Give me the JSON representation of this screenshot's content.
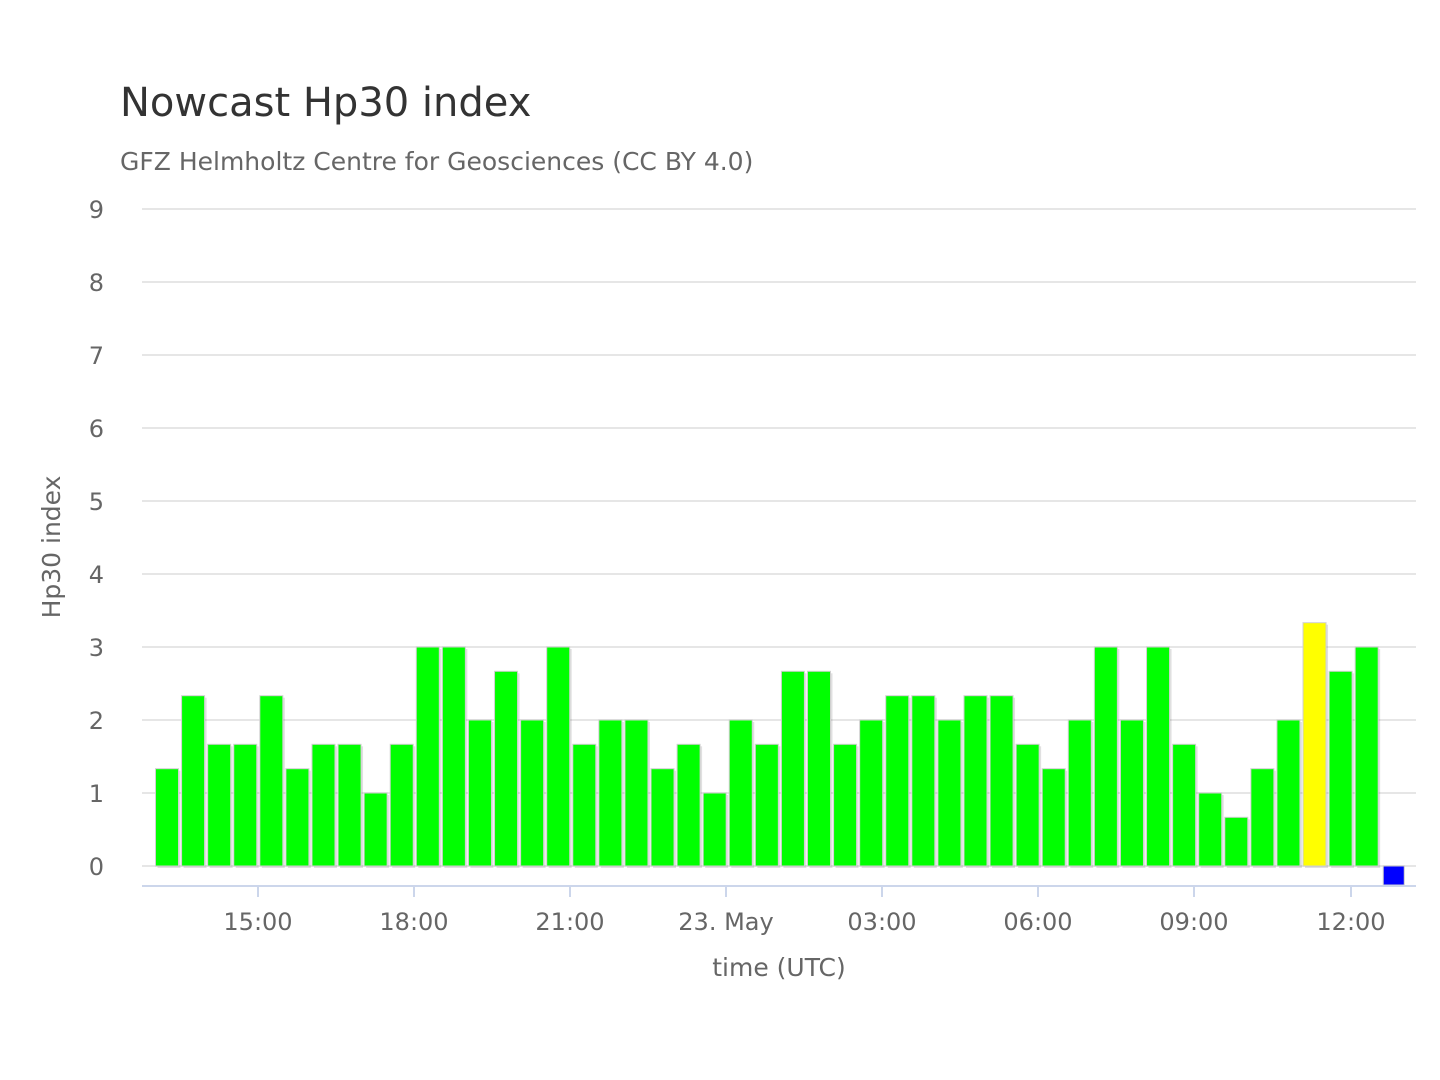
{
  "chart_data": {
    "type": "bar",
    "title": "Nowcast Hp30 index",
    "subtitle": "GFZ Helmholtz Centre for Geosciences (CC BY 4.0)",
    "xlabel": "time (UTC)",
    "ylabel": "Hp30 index",
    "ylim": [
      0,
      9
    ],
    "yticks": [
      "0",
      "1",
      "2",
      "3",
      "4",
      "5",
      "6",
      "7",
      "8",
      "9"
    ],
    "xticks": [
      "15:00",
      "18:00",
      "21:00",
      "23. May",
      "03:00",
      "06:00",
      "09:00",
      "12:00"
    ],
    "grid": true,
    "colors": {
      "normal": "#00ff00",
      "elevated": "#ffff00",
      "preliminary": "#0000ff"
    },
    "series": [
      {
        "values": [
          1.333,
          2.333,
          1.667,
          1.667,
          2.333,
          1.333,
          1.667,
          1.667,
          1.0,
          1.667,
          3.0,
          3.0,
          2.0,
          2.667,
          2.0,
          3.0,
          1.667,
          2.0,
          2.0,
          1.333,
          1.667,
          1.0,
          2.0,
          1.667,
          2.667,
          2.667,
          1.667,
          2.0,
          2.333,
          2.333,
          2.0,
          2.333,
          2.333,
          1.667,
          1.333,
          2.0,
          3.0,
          2.0,
          3.0,
          1.667,
          1.0,
          0.667,
          1.333,
          2.0,
          3.333,
          2.667,
          3.0,
          0.0
        ],
        "bar_colors": [
          "normal",
          "normal",
          "normal",
          "normal",
          "normal",
          "normal",
          "normal",
          "normal",
          "normal",
          "normal",
          "normal",
          "normal",
          "normal",
          "normal",
          "normal",
          "normal",
          "normal",
          "normal",
          "normal",
          "normal",
          "normal",
          "normal",
          "normal",
          "normal",
          "normal",
          "normal",
          "normal",
          "normal",
          "normal",
          "normal",
          "normal",
          "normal",
          "normal",
          "normal",
          "normal",
          "normal",
          "normal",
          "normal",
          "normal",
          "normal",
          "normal",
          "normal",
          "normal",
          "normal",
          "elevated",
          "normal",
          "normal",
          "preliminary"
        ]
      }
    ]
  }
}
